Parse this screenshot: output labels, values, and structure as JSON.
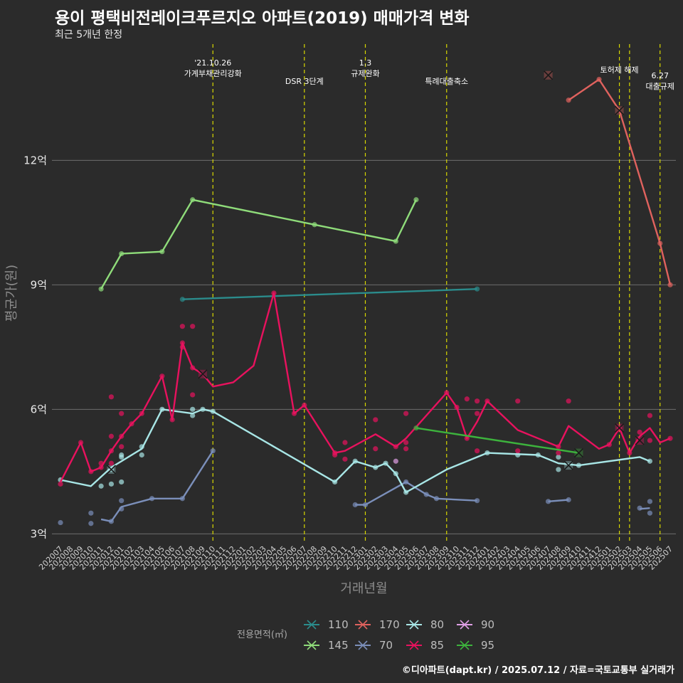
{
  "title": "용이 평택비전레이크푸르지오 아파트(2019) 매매가격 변화",
  "subtitle": "최근 5개년 한정",
  "caption": "©디아파트(dapt.kr) / 2025.07.12 / 자료=국토교통부 실거래가",
  "chart_data": {
    "type": "line",
    "xlabel": "거래년월",
    "ylabel": "평균가(원)",
    "ylim": [
      2.8,
      14.8
    ],
    "yticks": [
      {
        "value": 3,
        "label": "3억"
      },
      {
        "value": 6,
        "label": "6억"
      },
      {
        "value": 9,
        "label": "9억"
      },
      {
        "value": 12,
        "label": "12억"
      }
    ],
    "grid": "horizontal",
    "legend_position": "bottom",
    "legend_title": "전용면적(㎡)",
    "x_categories": [
      "202007",
      "202008",
      "202009",
      "202010",
      "202011",
      "202012",
      "202101",
      "202102",
      "202103",
      "202104",
      "202105",
      "202106",
      "202107",
      "202108",
      "202109",
      "202110",
      "202111",
      "202112",
      "202201",
      "202202",
      "202203",
      "202204",
      "202205",
      "202206",
      "202207",
      "202208",
      "202209",
      "202210",
      "202211",
      "202212",
      "202301",
      "202302",
      "202303",
      "202304",
      "202305",
      "202306",
      "202307",
      "202308",
      "202309",
      "202310",
      "202311",
      "202312",
      "202401",
      "202402",
      "202403",
      "202404",
      "202405",
      "202406",
      "202407",
      "202408",
      "202409",
      "202410",
      "202411",
      "202412",
      "202501",
      "202502",
      "202503",
      "202504",
      "202505",
      "202506",
      "202507"
    ],
    "events": [
      {
        "x": "202110",
        "label": "'21.10.26\n가계부채관리강화"
      },
      {
        "x": "202207",
        "label": "DSR 3단계"
      },
      {
        "x": "202301",
        "label": "1.3\n규제완화"
      },
      {
        "x": "202309",
        "label": "특례대출축소"
      },
      {
        "x": "202502",
        "label": "토허제 해제"
      },
      {
        "x": "202503",
        "label": ""
      },
      {
        "x": "202506",
        "label": "6.27\n대출규제"
      }
    ],
    "series": [
      {
        "name": "110",
        "color": "#2b8c8c",
        "line": [
          [
            "202107",
            8.65
          ],
          [
            "202312",
            8.9
          ]
        ],
        "points": [
          [
            "202107",
            8.65
          ],
          [
            "202312",
            8.9
          ]
        ],
        "crosses": []
      },
      {
        "name": "145",
        "color": "#8fdc7a",
        "line": [
          [
            "202011",
            8.9
          ],
          [
            "202101",
            9.75
          ],
          [
            "202105",
            9.8
          ],
          [
            "202108",
            11.05
          ],
          [
            "202208",
            10.45
          ],
          [
            "202304",
            10.05
          ],
          [
            "202306",
            11.05
          ]
        ],
        "points": [
          [
            "202011",
            8.9
          ],
          [
            "202101",
            9.75
          ],
          [
            "202105",
            9.8
          ],
          [
            "202108",
            11.05
          ],
          [
            "202208",
            10.45
          ],
          [
            "202304",
            10.05
          ],
          [
            "202306",
            11.05
          ]
        ],
        "crosses": []
      },
      {
        "name": "170",
        "color": "#e0625e",
        "line": [
          [
            "202409",
            13.45
          ],
          [
            "202412",
            13.95
          ],
          [
            "202502",
            13.2
          ],
          [
            "202503",
            12.4
          ],
          [
            "202506",
            10.0
          ],
          [
            "202507",
            9.0
          ]
        ],
        "points": [
          [
            "202409",
            13.45
          ],
          [
            "202412",
            13.95
          ],
          [
            "202506",
            10.0
          ],
          [
            "202507",
            9.0
          ]
        ],
        "crosses": [
          [
            "202407",
            14.05
          ],
          [
            "202502",
            13.2
          ]
        ]
      },
      {
        "name": "70",
        "color": "#7b8fba",
        "line_segments": [
          [
            [
              "202011",
              3.35
            ],
            [
              "202012",
              3.3
            ],
            [
              "202101",
              3.65
            ],
            [
              "202104",
              3.85
            ],
            [
              "202107",
              3.85
            ],
            [
              "202110",
              5.0
            ]
          ],
          [
            [
              "202212",
              3.7
            ],
            [
              "202301",
              3.7
            ],
            [
              "202305",
              4.25
            ],
            [
              "202307",
              3.95
            ],
            [
              "202308",
              3.85
            ],
            [
              "202312",
              3.8
            ]
          ],
          [
            [
              "202407",
              3.78
            ],
            [
              "202409",
              3.82
            ]
          ],
          [
            [
              "202504",
              3.6
            ],
            [
              "202505",
              3.62
            ]
          ]
        ],
        "points": [
          [
            "202007",
            3.27
          ],
          [
            "202010",
            3.25
          ],
          [
            "202010",
            3.5
          ],
          [
            "202012",
            3.3
          ],
          [
            "202101",
            3.8
          ],
          [
            "202101",
            3.6
          ],
          [
            "202104",
            3.85
          ],
          [
            "202107",
            3.85
          ],
          [
            "202110",
            5.0
          ],
          [
            "202212",
            3.7
          ],
          [
            "202301",
            3.7
          ],
          [
            "202305",
            4.25
          ],
          [
            "202307",
            3.95
          ],
          [
            "202308",
            3.85
          ],
          [
            "202312",
            3.8
          ],
          [
            "202407",
            3.78
          ],
          [
            "202409",
            3.82
          ],
          [
            "202504",
            3.62
          ],
          [
            "202505",
            3.78
          ],
          [
            "202505",
            3.5
          ]
        ],
        "crosses": []
      },
      {
        "name": "80",
        "color": "#a8e6e6",
        "line": [
          [
            "202007",
            4.3
          ],
          [
            "202010",
            4.15
          ],
          [
            "202012",
            4.6
          ],
          [
            "202103",
            5.05
          ],
          [
            "202105",
            6.0
          ],
          [
            "202108",
            5.9
          ],
          [
            "202109",
            6.0
          ],
          [
            "202110",
            5.95
          ],
          [
            "202210",
            4.25
          ],
          [
            "202212",
            4.75
          ],
          [
            "202302",
            4.6
          ],
          [
            "202303",
            4.7
          ],
          [
            "202304",
            4.45
          ],
          [
            "202305",
            4.0
          ],
          [
            "202309",
            4.55
          ],
          [
            "202401",
            4.95
          ],
          [
            "202406",
            4.9
          ],
          [
            "202408",
            4.7
          ],
          [
            "202410",
            4.65
          ],
          [
            "202504",
            4.85
          ],
          [
            "202505",
            4.75
          ]
        ],
        "points": [
          [
            "202007",
            4.3
          ],
          [
            "202011",
            4.15
          ],
          [
            "202012",
            4.2
          ],
          [
            "202012",
            4.55
          ],
          [
            "202101",
            4.9
          ],
          [
            "202101",
            4.85
          ],
          [
            "202101",
            4.25
          ],
          [
            "202103",
            5.1
          ],
          [
            "202103",
            4.9
          ],
          [
            "202105",
            6.0
          ],
          [
            "202108",
            6.0
          ],
          [
            "202108",
            5.85
          ],
          [
            "202109",
            6.0
          ],
          [
            "202110",
            5.95
          ],
          [
            "202210",
            4.25
          ],
          [
            "202212",
            4.75
          ],
          [
            "202302",
            4.6
          ],
          [
            "202303",
            4.7
          ],
          [
            "202304",
            4.45
          ],
          [
            "202305",
            4.0
          ],
          [
            "202401",
            4.95
          ],
          [
            "202404",
            4.9
          ],
          [
            "202406",
            4.9
          ],
          [
            "202408",
            4.55
          ],
          [
            "202408",
            4.85
          ],
          [
            "202410",
            4.65
          ],
          [
            "202505",
            4.75
          ]
        ],
        "crosses": [
          [
            "202012",
            4.55
          ],
          [
            "202409",
            4.65
          ]
        ]
      },
      {
        "name": "85",
        "color": "#e8125e",
        "line": [
          [
            "202007",
            4.25
          ],
          [
            "202009",
            5.2
          ],
          [
            "202010",
            4.5
          ],
          [
            "202011",
            4.6
          ],
          [
            "202012",
            5.0
          ],
          [
            "202101",
            5.35
          ],
          [
            "202102",
            5.65
          ],
          [
            "202103",
            5.9
          ],
          [
            "202105",
            6.8
          ],
          [
            "202106",
            5.75
          ],
          [
            "202107",
            7.6
          ],
          [
            "202108",
            7.0
          ],
          [
            "202109",
            6.85
          ],
          [
            "202110",
            6.55
          ],
          [
            "202112",
            6.65
          ],
          [
            "202202",
            7.05
          ],
          [
            "202204",
            8.8
          ],
          [
            "202206",
            5.9
          ],
          [
            "202207",
            6.1
          ],
          [
            "202210",
            4.95
          ],
          [
            "202211",
            5.0
          ],
          [
            "202302",
            5.4
          ],
          [
            "202304",
            5.1
          ],
          [
            "202305",
            5.3
          ],
          [
            "202309",
            6.4
          ],
          [
            "202310",
            6.05
          ],
          [
            "202311",
            5.3
          ],
          [
            "202312",
            5.7
          ],
          [
            "202401",
            6.2
          ],
          [
            "202404",
            5.5
          ],
          [
            "202408",
            5.1
          ],
          [
            "202409",
            5.6
          ],
          [
            "202412",
            5.05
          ],
          [
            "202501",
            5.15
          ],
          [
            "202502",
            5.55
          ],
          [
            "202503",
            4.95
          ],
          [
            "202504",
            5.35
          ],
          [
            "202505",
            5.55
          ],
          [
            "202506",
            5.2
          ],
          [
            "202507",
            5.3
          ]
        ],
        "points": [
          [
            "202007",
            4.2
          ],
          [
            "202009",
            5.2
          ],
          [
            "202010",
            4.5
          ],
          [
            "202011",
            4.7
          ],
          [
            "202011",
            4.6
          ],
          [
            "202012",
            6.3
          ],
          [
            "202012",
            5.35
          ],
          [
            "202012",
            5.0
          ],
          [
            "202012",
            4.7
          ],
          [
            "202101",
            5.9
          ],
          [
            "202101",
            5.35
          ],
          [
            "202101",
            5.1
          ],
          [
            "202102",
            5.65
          ],
          [
            "202103",
            5.9
          ],
          [
            "202105",
            6.8
          ],
          [
            "202106",
            5.75
          ],
          [
            "202107",
            8.0
          ],
          [
            "202107",
            7.6
          ],
          [
            "202107",
            7.5
          ],
          [
            "202108",
            8.0
          ],
          [
            "202108",
            6.35
          ],
          [
            "202108",
            7.0
          ],
          [
            "202204",
            8.8
          ],
          [
            "202206",
            5.9
          ],
          [
            "202207",
            6.1
          ],
          [
            "202210",
            4.95
          ],
          [
            "202210",
            4.9
          ],
          [
            "202211",
            5.2
          ],
          [
            "202211",
            4.8
          ],
          [
            "202302",
            5.75
          ],
          [
            "202302",
            5.05
          ],
          [
            "202304",
            5.1
          ],
          [
            "202305",
            5.9
          ],
          [
            "202305",
            5.2
          ],
          [
            "202305",
            5.05
          ],
          [
            "202309",
            6.4
          ],
          [
            "202310",
            6.05
          ],
          [
            "202311",
            6.25
          ],
          [
            "202311",
            5.3
          ],
          [
            "202312",
            6.2
          ],
          [
            "202312",
            5.9
          ],
          [
            "202312",
            5.0
          ],
          [
            "202401",
            6.2
          ],
          [
            "202404",
            6.2
          ],
          [
            "202404",
            5.0
          ],
          [
            "202408",
            5.1
          ],
          [
            "202408",
            4.95
          ],
          [
            "202409",
            6.2
          ],
          [
            "202501",
            5.15
          ],
          [
            "202502",
            5.55
          ],
          [
            "202503",
            4.95
          ],
          [
            "202504",
            5.45
          ],
          [
            "202505",
            5.85
          ],
          [
            "202505",
            5.25
          ],
          [
            "202507",
            5.3
          ]
        ],
        "crosses": [
          [
            "202109",
            6.85
          ],
          [
            "202502",
            5.55
          ],
          [
            "202504",
            5.25
          ]
        ]
      },
      {
        "name": "90",
        "color": "#e0a0e6",
        "line": [],
        "points": [
          [
            "202304",
            4.75
          ]
        ],
        "crosses": []
      },
      {
        "name": "95",
        "color": "#3db33d",
        "line": [
          [
            "202306",
            5.55
          ],
          [
            "202410",
            4.95
          ]
        ],
        "points": [
          [
            "202306",
            5.55
          ]
        ],
        "crosses": [
          [
            "202410",
            4.95
          ]
        ]
      }
    ]
  }
}
